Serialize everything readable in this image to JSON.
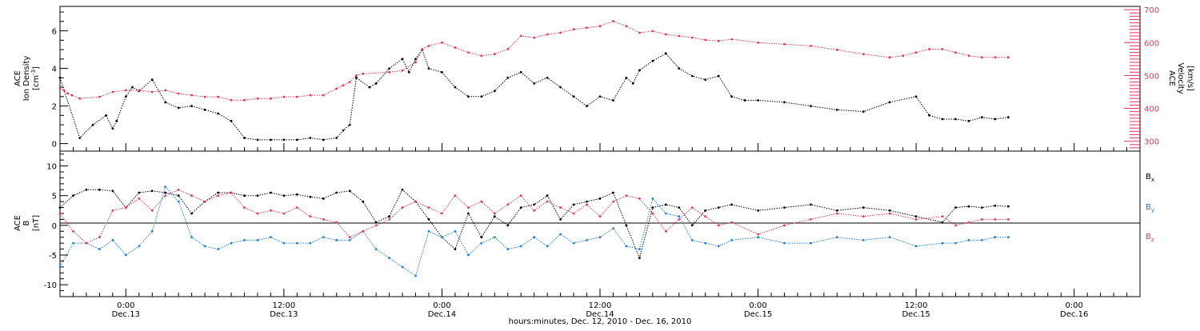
{
  "x_axis": {
    "title": "hours:minutes, Dec. 12, 2010 - Dec. 16, 2010",
    "ticks": [
      {
        "time": "0:00",
        "date": "Dec.13",
        "t": 24
      },
      {
        "time": "12:00",
        "date": "Dec.13",
        "t": 36
      },
      {
        "time": "0:00",
        "date": "Dec.14",
        "t": 48
      },
      {
        "time": "12:00",
        "date": "Dec.14",
        "t": 60
      },
      {
        "time": "0:00",
        "date": "Dec.15",
        "t": 72
      },
      {
        "time": "12:00",
        "date": "Dec.15",
        "t": 84
      },
      {
        "time": "0:00",
        "date": "Dec.16",
        "t": 96
      }
    ]
  },
  "colors": {
    "black": "#000000",
    "pink": "#e8335f",
    "blue": "#1a7ee0"
  },
  "chart_data": [
    {
      "type": "scatter",
      "panel": "top",
      "xlim": [
        19.0,
        101.0
      ],
      "left_axis": {
        "label_lines": [
          "ACE",
          "Ion Density"
        ],
        "unit_prefix": "[cm",
        "unit_sup": "-3",
        "unit_suffix": "]",
        "ylim": [
          -0.4,
          7.3
        ],
        "ticks": [
          0,
          2,
          4,
          6
        ],
        "color": "#000000"
      },
      "right_axis": {
        "label_lines": [
          "ACE",
          "Velocity",
          "[km/s]"
        ],
        "ylim": [
          270,
          710
        ],
        "ticks": [
          300,
          400,
          500,
          600,
          700
        ],
        "color": "#e8335f"
      },
      "series": [
        {
          "axis": "left",
          "color": "#000000",
          "x": [
            19.0,
            20.5,
            21.5,
            22.5,
            23.0,
            23.3,
            24.0,
            24.5,
            25.0,
            26.0,
            27.0,
            28.0,
            29.0,
            30.0,
            31.0,
            32.0,
            33.0,
            34.0,
            35.0,
            36.0,
            37.0,
            38.0,
            39.0,
            40.0,
            40.5,
            41.0,
            41.5,
            42.5,
            43.0,
            44.0,
            45.0,
            45.5,
            46.0,
            46.5,
            47.0,
            48.0,
            49.0,
            50.0,
            51.0,
            52.0,
            53.0,
            54.0,
            55.0,
            56.0,
            57.0,
            58.0,
            59.0,
            60.0,
            61.0,
            62.0,
            62.5,
            63.0,
            64.0,
            65.0,
            66.0,
            67.0,
            68.0,
            69.0,
            70.0,
            71.0,
            72.0,
            74.0,
            76.0,
            78.0,
            80.0,
            82.0,
            84.0,
            85.0,
            86.0,
            87.0,
            88.0,
            89.0,
            90.0,
            91.0
          ],
          "y": [
            3.5,
            0.3,
            1.0,
            1.5,
            0.8,
            1.2,
            2.5,
            3.0,
            2.8,
            3.4,
            2.2,
            1.9,
            2.0,
            1.8,
            1.6,
            1.2,
            0.3,
            0.2,
            0.2,
            0.2,
            0.2,
            0.3,
            0.2,
            0.3,
            0.7,
            1.0,
            3.5,
            3.0,
            3.2,
            4.0,
            4.5,
            3.8,
            4.5,
            5.0,
            4.0,
            3.8,
            3.0,
            2.5,
            2.5,
            2.8,
            3.5,
            3.8,
            3.2,
            3.5,
            3.0,
            2.5,
            2.0,
            2.5,
            2.3,
            3.5,
            3.2,
            3.9,
            4.4,
            4.8,
            4.0,
            3.6,
            3.4,
            3.6,
            2.5,
            2.3,
            2.3,
            2.2,
            2.0,
            1.8,
            1.7,
            2.2,
            2.5,
            1.5,
            1.3,
            1.3,
            1.2,
            1.4,
            1.3,
            1.4
          ]
        },
        {
          "axis": "right",
          "color": "#e8335f",
          "x": [
            19.0,
            19.3,
            19.6,
            19.9,
            20.5,
            22.0,
            23.0,
            24.0,
            25.0,
            26.0,
            27.0,
            28.0,
            29.0,
            30.0,
            31.0,
            32.0,
            33.0,
            34.0,
            35.0,
            36.0,
            37.0,
            38.0,
            39.0,
            40.0,
            40.5,
            41.0,
            41.5,
            42.0,
            44.0,
            45.0,
            46.0,
            46.5,
            47.0,
            48.0,
            49.0,
            50.0,
            51.0,
            52.0,
            53.0,
            54.0,
            55.0,
            56.0,
            57.0,
            58.0,
            59.0,
            60.0,
            61.0,
            62.0,
            63.0,
            64.0,
            65.0,
            66.0,
            67.0,
            68.0,
            69.0,
            70.0,
            72.0,
            74.0,
            76.0,
            78.0,
            80.0,
            82.0,
            83.0,
            84.0,
            85.0,
            86.0,
            87.0,
            88.0,
            89.0,
            90.0,
            91.0
          ],
          "y": [
            460,
            455,
            445,
            440,
            430,
            435,
            450,
            455,
            455,
            450,
            455,
            445,
            440,
            435,
            435,
            425,
            425,
            430,
            430,
            435,
            435,
            440,
            440,
            460,
            470,
            480,
            500,
            505,
            510,
            515,
            540,
            580,
            590,
            600,
            585,
            570,
            560,
            565,
            580,
            620,
            615,
            625,
            630,
            640,
            645,
            650,
            665,
            650,
            630,
            635,
            625,
            620,
            615,
            608,
            605,
            610,
            600,
            595,
            590,
            578,
            565,
            555,
            560,
            570,
            580,
            580,
            570,
            560,
            555,
            555,
            555
          ]
        }
      ]
    },
    {
      "type": "scatter",
      "panel": "bottom",
      "xlim": [
        19.0,
        101.0
      ],
      "axis": {
        "label_lines": [
          "ACE",
          "B",
          "[nT]"
        ],
        "ylim": [
          -12.0,
          12.5
        ],
        "ticks": [
          -10,
          -5,
          0,
          5,
          10
        ],
        "zero_line": true
      },
      "legend": [
        {
          "base": "B",
          "sub": "x",
          "color": "#000000"
        },
        {
          "base": "B",
          "sub": "y",
          "color": "#1a7ee0"
        },
        {
          "base": "B",
          "sub": "z",
          "color": "#e8335f"
        }
      ],
      "series": [
        {
          "name": "Bx",
          "color": "#000000",
          "x": [
            19.0,
            20.0,
            21.0,
            22.0,
            23.0,
            24.0,
            25.0,
            26.0,
            27.0,
            28.0,
            29.0,
            30.0,
            31.0,
            32.0,
            33.0,
            34.0,
            35.0,
            36.0,
            37.0,
            38.0,
            39.0,
            40.0,
            41.0,
            42.0,
            43.0,
            44.0,
            45.0,
            46.0,
            47.0,
            48.0,
            49.0,
            50.0,
            51.0,
            52.0,
            53.0,
            54.0,
            55.0,
            56.0,
            57.0,
            58.0,
            59.0,
            60.0,
            61.0,
            62.0,
            63.0,
            64.0,
            65.0,
            66.0,
            67.0,
            68.0,
            69.0,
            70.0,
            72.0,
            74.0,
            76.0,
            78.0,
            80.0,
            82.0,
            84.0,
            86.0,
            87.0,
            88.0,
            89.0,
            90.0,
            91.0
          ],
          "y": [
            3.0,
            5.0,
            6.0,
            6.0,
            5.8,
            3.0,
            5.5,
            5.8,
            5.5,
            5.0,
            2.0,
            4.0,
            5.5,
            5.5,
            5.0,
            5.0,
            5.5,
            5.0,
            5.2,
            4.8,
            4.5,
            5.5,
            5.8,
            4.0,
            0.5,
            1.5,
            6.0,
            4.0,
            1.0,
            -2.0,
            -4.0,
            2.0,
            -2.0,
            1.5,
            0.0,
            3.0,
            3.5,
            5.0,
            1.0,
            3.5,
            4.0,
            4.5,
            5.5,
            0.0,
            -5.5,
            3.0,
            3.5,
            3.0,
            0.0,
            2.5,
            3.0,
            3.5,
            2.5,
            3.0,
            3.5,
            2.5,
            3.0,
            2.5,
            1.5,
            0.5,
            3.0,
            3.2,
            3.0,
            3.3,
            3.2
          ]
        },
        {
          "name": "By",
          "color": "#1a7ee0",
          "x": [
            19.0,
            20.0,
            21.0,
            22.0,
            23.0,
            24.0,
            25.0,
            26.0,
            27.0,
            28.0,
            29.0,
            30.0,
            31.0,
            32.0,
            33.0,
            34.0,
            35.0,
            36.0,
            37.0,
            38.0,
            39.0,
            40.0,
            41.0,
            42.0,
            43.0,
            44.0,
            45.0,
            46.0,
            47.0,
            48.0,
            49.0,
            50.0,
            51.0,
            52.0,
            53.0,
            54.0,
            55.0,
            56.0,
            57.0,
            58.0,
            59.0,
            60.0,
            61.0,
            62.0,
            63.0,
            64.0,
            65.0,
            66.0,
            67.0,
            68.0,
            69.0,
            70.0,
            72.0,
            74.0,
            76.0,
            78.0,
            80.0,
            82.0,
            84.0,
            86.0,
            87.0,
            88.0,
            89.0,
            90.0,
            91.0
          ],
          "y": [
            -7.0,
            -3.0,
            -3.0,
            -4.0,
            -2.5,
            -5.0,
            -3.5,
            -1.0,
            6.5,
            4.0,
            -2.0,
            -3.5,
            -4.0,
            -3.0,
            -2.5,
            -2.5,
            -2.0,
            -3.0,
            -3.0,
            -3.0,
            -2.0,
            -2.5,
            -2.5,
            -1.0,
            -4.0,
            -5.5,
            -7.0,
            -8.5,
            -1.0,
            -2.0,
            -1.0,
            -5.0,
            -3.0,
            -2.0,
            -4.0,
            -3.5,
            -2.0,
            -3.5,
            -1.5,
            -3.0,
            -2.5,
            -2.0,
            -0.5,
            -3.5,
            -4.0,
            4.5,
            2.0,
            1.5,
            -2.5,
            -3.0,
            -3.5,
            -2.5,
            -2.0,
            -3.0,
            -3.0,
            -2.0,
            -2.5,
            -2.0,
            -3.5,
            -3.0,
            -3.0,
            -2.5,
            -2.5,
            -2.0,
            -2.0
          ]
        },
        {
          "name": "Bz",
          "color": "#e8335f",
          "x": [
            19.0,
            20.0,
            21.0,
            22.0,
            23.0,
            24.0,
            25.0,
            26.0,
            27.0,
            28.0,
            29.0,
            30.0,
            31.0,
            32.0,
            33.0,
            34.0,
            35.0,
            36.0,
            37.0,
            38.0,
            39.0,
            40.0,
            41.0,
            42.0,
            43.0,
            44.0,
            45.0,
            46.0,
            47.0,
            48.0,
            49.0,
            50.0,
            51.0,
            52.0,
            53.0,
            54.0,
            55.0,
            56.0,
            57.0,
            58.0,
            59.0,
            60.0,
            61.0,
            62.0,
            63.0,
            64.0,
            65.0,
            66.0,
            67.0,
            68.0,
            69.0,
            70.0,
            72.0,
            74.0,
            76.0,
            78.0,
            80.0,
            82.0,
            84.0,
            86.0,
            87.0,
            88.0,
            89.0,
            90.0,
            91.0
          ],
          "y": [
            2.0,
            -1.0,
            -3.0,
            -2.0,
            2.5,
            3.0,
            4.5,
            2.5,
            5.0,
            6.0,
            5.0,
            4.0,
            5.0,
            5.5,
            3.0,
            2.0,
            2.5,
            2.0,
            3.0,
            1.5,
            1.0,
            0.5,
            -2.0,
            -1.0,
            0.0,
            1.0,
            3.0,
            4.0,
            3.0,
            2.0,
            5.0,
            3.0,
            4.0,
            2.0,
            3.5,
            5.0,
            2.5,
            4.0,
            3.0,
            2.0,
            3.5,
            1.5,
            4.0,
            5.0,
            4.5,
            2.0,
            -1.0,
            1.0,
            3.0,
            1.5,
            0.0,
            0.5,
            -1.5,
            0.0,
            1.0,
            2.0,
            1.5,
            2.0,
            1.0,
            1.5,
            0.0,
            0.5,
            1.0,
            1.0,
            1.0
          ]
        }
      ]
    }
  ]
}
